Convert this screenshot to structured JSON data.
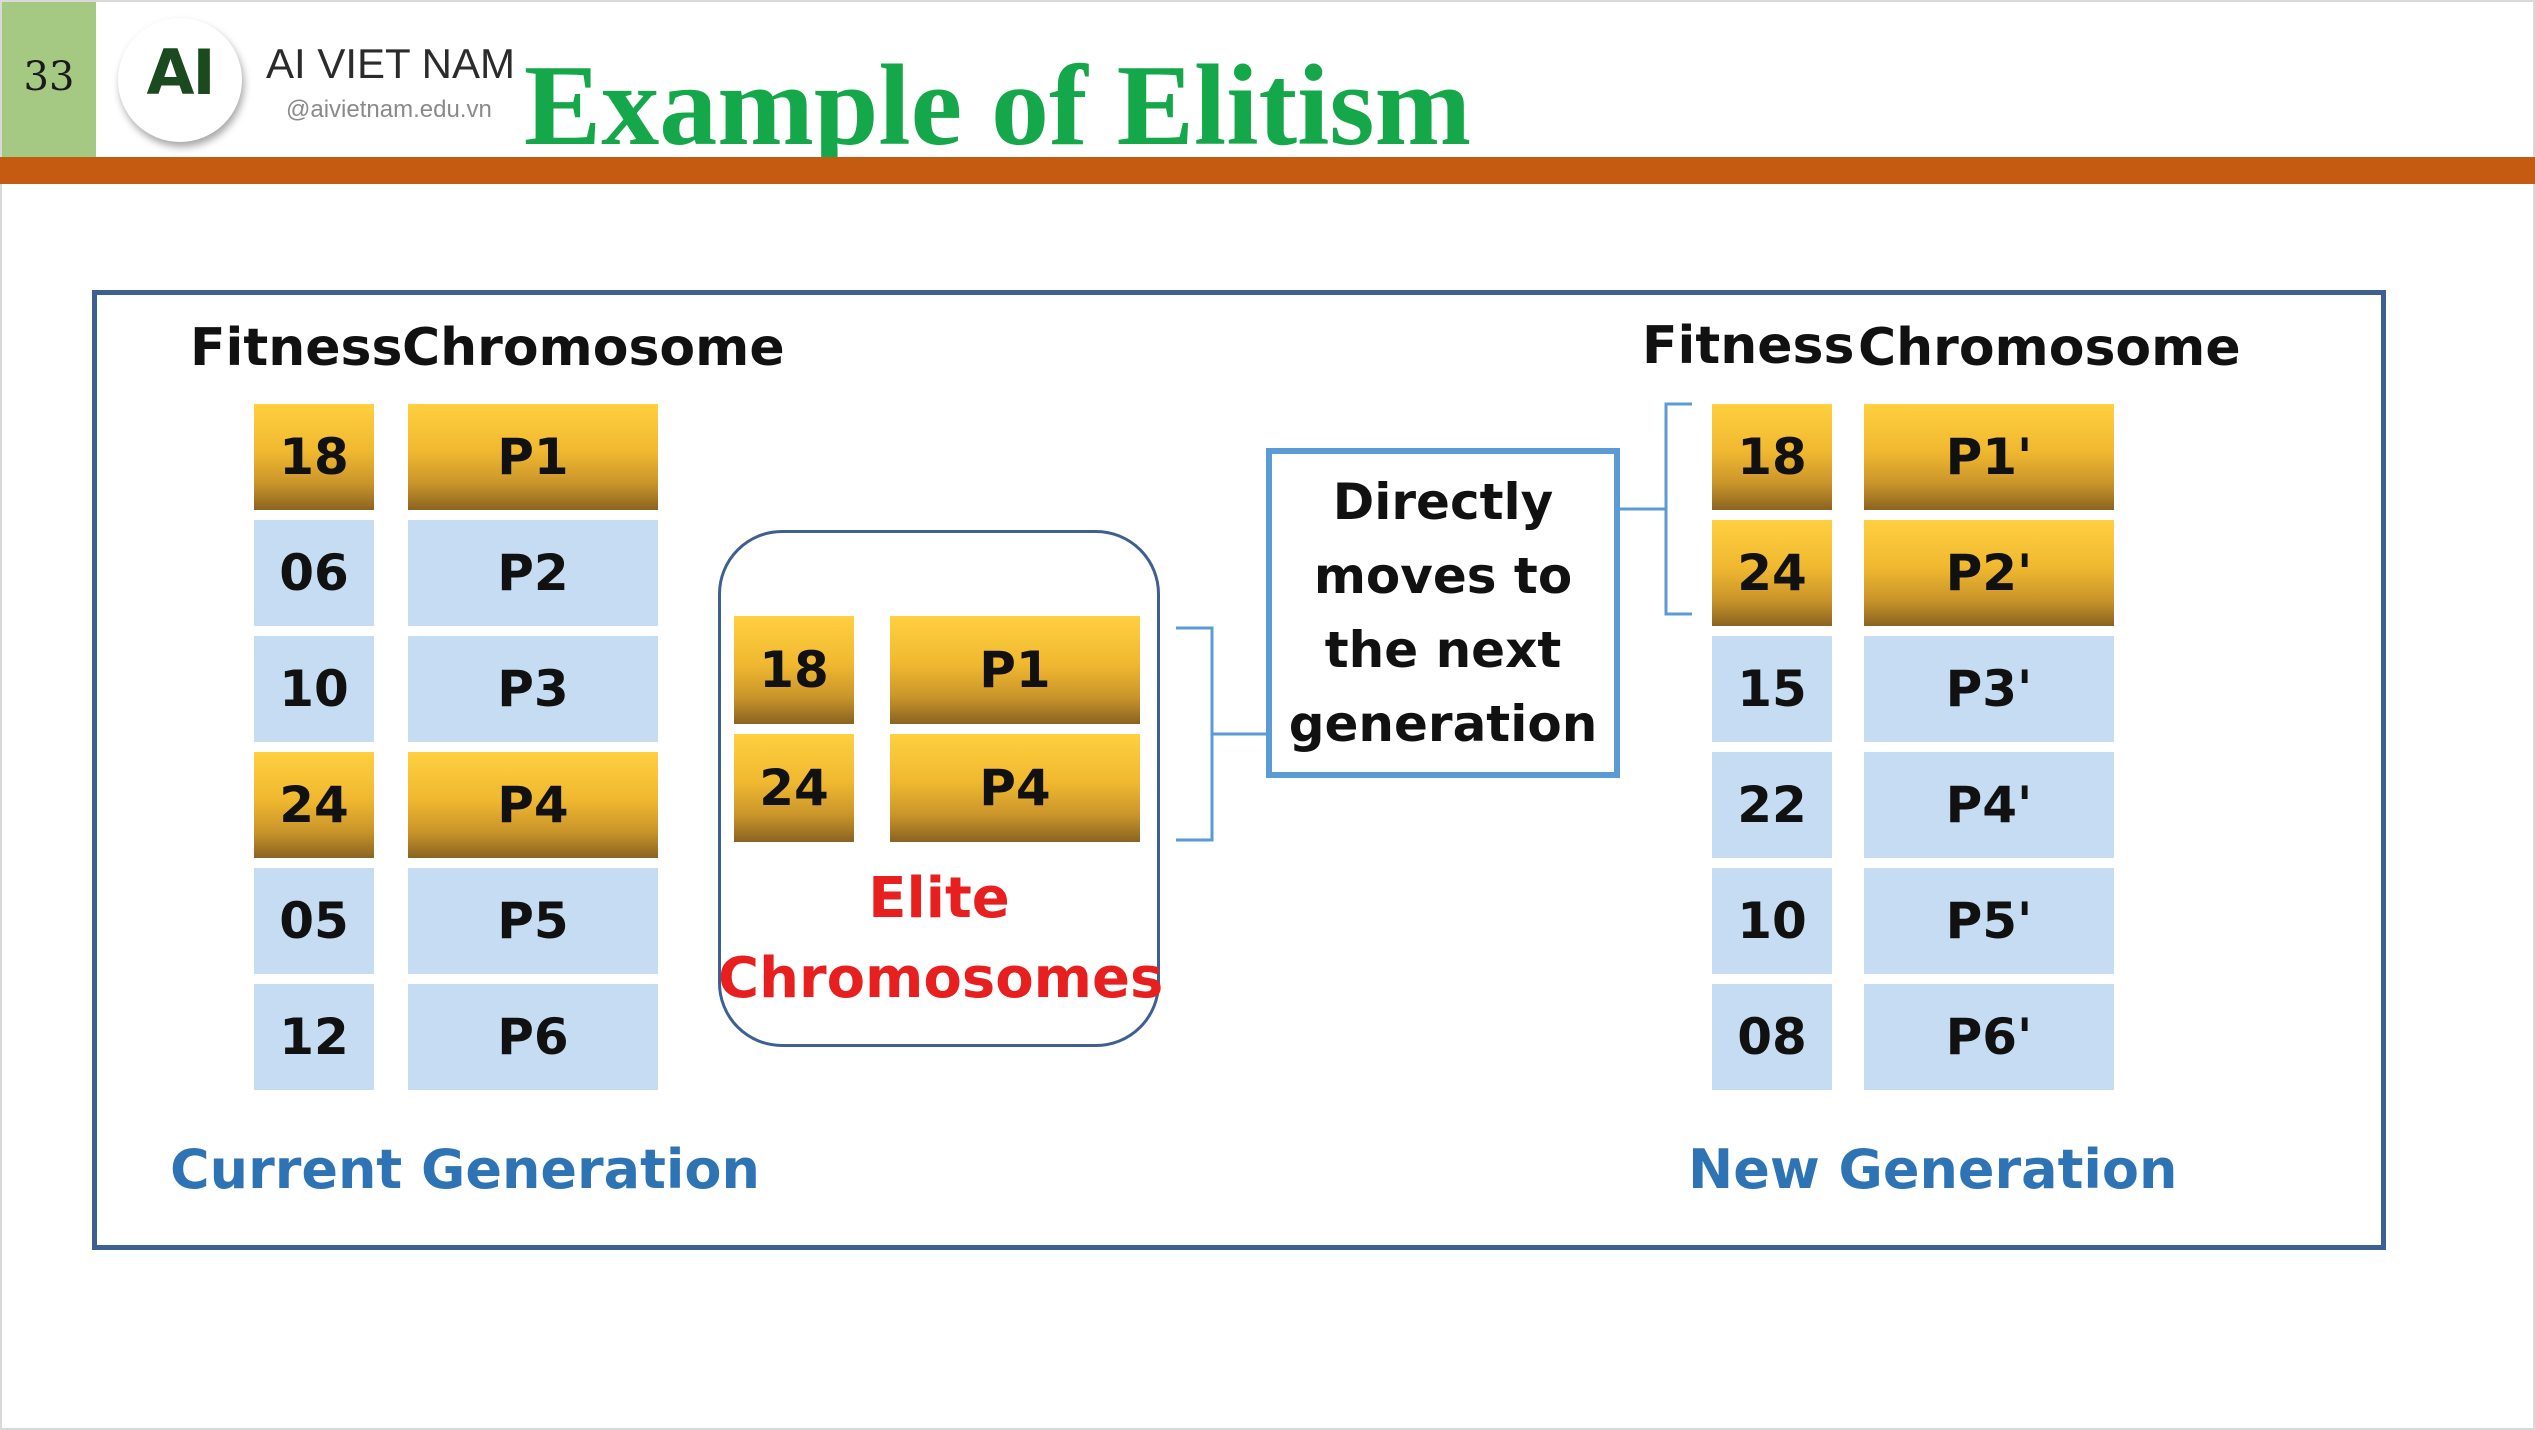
{
  "header": {
    "page_number": "33",
    "logo_text": "AI",
    "brand_name": "AI VIET NAM",
    "brand_url": "@aivietnam.edu.vn",
    "title": "Example of Elitism",
    "colors": {
      "accent_bar": "#c55a11",
      "title": "#15a84a",
      "page_box": "#a5c882"
    }
  },
  "diagram": {
    "current": {
      "fitness_header": "Fitness",
      "chromosome_header": "Chromosome",
      "rows": [
        {
          "fitness": "18",
          "chromosome": "P1",
          "elite": true
        },
        {
          "fitness": "06",
          "chromosome": "P2",
          "elite": false
        },
        {
          "fitness": "10",
          "chromosome": "P3",
          "elite": false
        },
        {
          "fitness": "24",
          "chromosome": "P4",
          "elite": true
        },
        {
          "fitness": "05",
          "chromosome": "P5",
          "elite": false
        },
        {
          "fitness": "12",
          "chromosome": "P6",
          "elite": false
        }
      ],
      "label": "Current Generation"
    },
    "elite": {
      "rows": [
        {
          "fitness": "18",
          "chromosome": "P1"
        },
        {
          "fitness": "24",
          "chromosome": "P4"
        }
      ],
      "label_line1": "Elite",
      "label_line2": "Chromosomes"
    },
    "moves": {
      "lines": [
        "Directly",
        "moves to",
        "the next",
        "generation"
      ]
    },
    "new": {
      "fitness_header": "Fitness",
      "chromosome_header": "Chromosome",
      "rows": [
        {
          "fitness": "18",
          "chromosome": "P1'",
          "elite": true
        },
        {
          "fitness": "24",
          "chromosome": "P2'",
          "elite": true
        },
        {
          "fitness": "15",
          "chromosome": "P3'",
          "elite": false
        },
        {
          "fitness": "22",
          "chromosome": "P4'",
          "elite": false
        },
        {
          "fitness": "10",
          "chromosome": "P5'",
          "elite": false
        },
        {
          "fitness": "08",
          "chromosome": "P6'",
          "elite": false
        }
      ],
      "label": "New Generation"
    },
    "colors": {
      "gold": "#f0b830",
      "blue": "#c5dcf2",
      "frame": "#3d5f91",
      "elite_text": "#e81f1f",
      "gen_label": "#2e74b5"
    }
  }
}
